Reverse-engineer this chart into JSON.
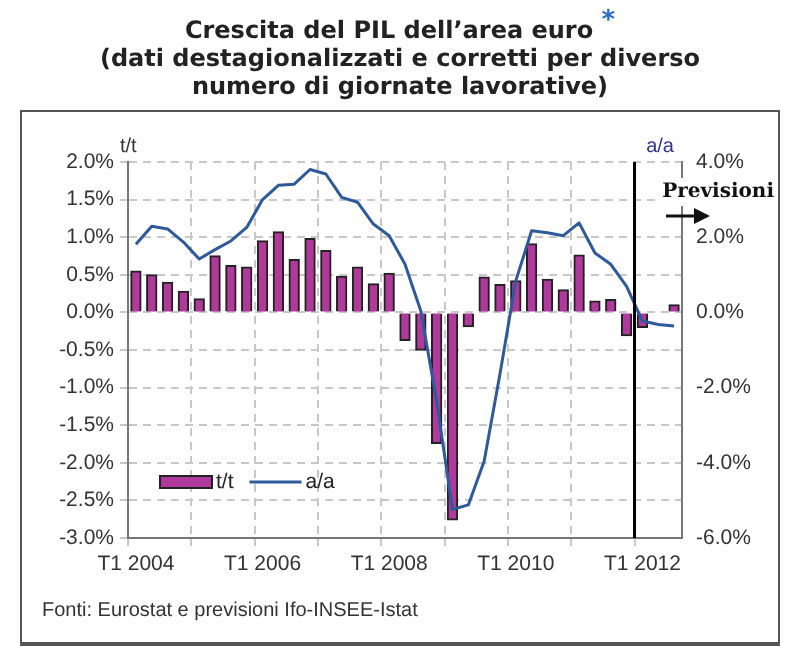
{
  "chart_data": {
    "type": "bar",
    "title": "Crescita del PIL dell’area euro $^{*}$",
    "subtitle": "(dati destagionalizzati e corretti per diverso numero di giornate lavorative)",
    "ylabel": "t/t",
    "y2label": "a/a",
    "categories": [
      "T1 2004",
      null,
      null,
      null,
      null,
      null,
      null,
      null,
      "T1 2006",
      null,
      null,
      null,
      null,
      null,
      null,
      null,
      "T1 2008",
      null,
      null,
      null,
      null,
      null,
      null,
      null,
      "T1 2010",
      null,
      null,
      null,
      null,
      null,
      null,
      null,
      "T1 2012",
      null,
      null
    ],
    "series": [
      {
        "name": "t/t",
        "color": "#b0399c",
        "values": [
          0.55,
          0.5,
          0.4,
          0.28,
          0.18,
          0.75,
          0.62,
          0.6,
          0.95,
          1.07,
          0.7,
          0.98,
          0.82,
          0.48,
          0.6,
          0.38,
          0.52,
          -0.37,
          -0.5,
          -1.74,
          -2.76,
          -0.19,
          0.47,
          0.37,
          0.42,
          0.91,
          0.44,
          0.3,
          0.76,
          0.15,
          0.17,
          -0.31,
          -0.2,
          0,
          0.1
        ]
      },
      {
        "name": "a/a",
        "type": "line",
        "axis": "y2",
        "color": "#2e5a9c",
        "values": [
          1.81,
          2.29,
          2.22,
          1.87,
          1.42,
          1.67,
          1.9,
          2.26,
          3.0,
          3.38,
          3.41,
          3.8,
          3.68,
          3.06,
          2.93,
          2.35,
          2.04,
          1.28,
          0.04,
          -2.36,
          -5.24,
          -5.12,
          -3.96,
          -1.64,
          0.84,
          2.17,
          2.12,
          2.04,
          2.38,
          1.58,
          1.28,
          0.69,
          -0.23,
          -0.32,
          -0.36
        ]
      }
    ],
    "ylim": [
      -3,
      2
    ],
    "yticks": [
      {
        "value": -3,
        "label": "-3.0%"
      },
      {
        "value": -2.5,
        "label": "-2.5%"
      },
      {
        "value": -2,
        "label": "-2.0%"
      },
      {
        "value": -1.5,
        "label": "-1.5%"
      },
      {
        "value": -1,
        "label": "-1.0%"
      },
      {
        "value": -0.5,
        "label": "-0.5%"
      },
      {
        "value": 0,
        "label": "0.0%"
      },
      {
        "value": 0.5,
        "label": "0.5%"
      },
      {
        "value": 1,
        "label": "1.0%"
      },
      {
        "value": 1.5,
        "label": "1.5%"
      },
      {
        "value": 2,
        "label": "2.0%"
      }
    ],
    "y2lim": [
      -6,
      4
    ],
    "y2ticks": [
      {
        "value": -6,
        "label": "-6.0%"
      },
      {
        "value": -4,
        "label": "-4.0%"
      },
      {
        "value": -2,
        "label": "-2.0%"
      },
      {
        "value": 0,
        "label": "0.0%"
      },
      {
        "value": 2,
        "label": "2.0%"
      },
      {
        "value": 4,
        "label": "4.0%"
      }
    ],
    "ref_lines": [
      {
        "axis": "x",
        "value": "T1 2012",
        "label": "Previsioni",
        "color": "#000000"
      }
    ],
    "grid": true,
    "legend": "bottom left",
    "line_style": "solid",
    "annotations": [
      "Fonti: Eurostat e previsioni Ifo-INSEE-Istat"
    ]
  }
}
